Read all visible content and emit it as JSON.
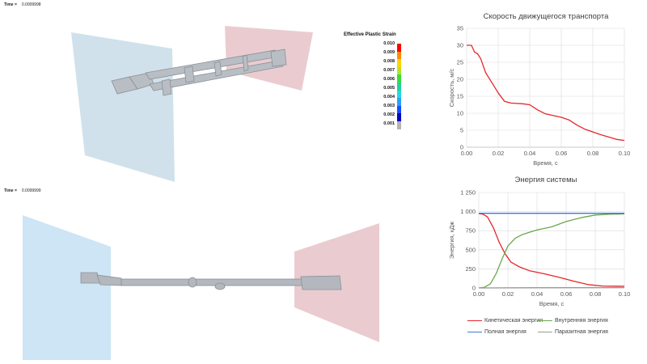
{
  "top_view": {
    "time_label": "Time =",
    "time_value": "0.0009998"
  },
  "bottom_view": {
    "time_label": "Time =",
    "time_value": "0.0099999"
  },
  "strain_legend": {
    "title": "Effective Plastic Strain",
    "levels": [
      "0.010",
      "0.009",
      "0.008",
      "0.007",
      "0.006",
      "0.005",
      "0.004",
      "0.003",
      "0.002",
      "0.001"
    ],
    "colors": [
      "#ff0000",
      "#ff8c00",
      "#ffd400",
      "#b4e61e",
      "#3cdc3c",
      "#1ed2a0",
      "#1edcdc",
      "#28a0ff",
      "#1450ff",
      "#0000c8",
      "#b4b4b4"
    ]
  },
  "chart_data": [
    {
      "type": "line",
      "title": "Скорость движущегося транспорта",
      "xlabel": "Время, с",
      "ylabel": "Скорость, м/с",
      "xlim": [
        0,
        0.1
      ],
      "ylim": [
        0,
        35
      ],
      "x_ticks": [
        "0.00",
        "0.02",
        "0.04",
        "0.06",
        "0.08",
        "0.10"
      ],
      "y_ticks": [
        "0",
        "5",
        "10",
        "15",
        "20",
        "25",
        "30",
        "35"
      ],
      "series": [
        {
          "name": "Скорость",
          "color": "#e8262b",
          "points": [
            [
              0,
              30
            ],
            [
              0.003,
              30
            ],
            [
              0.005,
              28
            ],
            [
              0.007,
              27.5
            ],
            [
              0.009,
              26
            ],
            [
              0.012,
              22
            ],
            [
              0.016,
              19
            ],
            [
              0.02,
              16
            ],
            [
              0.024,
              13.5
            ],
            [
              0.028,
              13
            ],
            [
              0.035,
              12.8
            ],
            [
              0.04,
              12.5
            ],
            [
              0.045,
              11
            ],
            [
              0.05,
              9.8
            ],
            [
              0.055,
              9.3
            ],
            [
              0.06,
              8.8
            ],
            [
              0.065,
              8
            ],
            [
              0.07,
              6.5
            ],
            [
              0.075,
              5.3
            ],
            [
              0.08,
              4.5
            ],
            [
              0.085,
              3.7
            ],
            [
              0.09,
              3
            ],
            [
              0.095,
              2.3
            ],
            [
              0.1,
              2
            ]
          ]
        }
      ]
    },
    {
      "type": "line",
      "title": "Энергия системы",
      "xlabel": "Время, с",
      "ylabel": "Энергия, кДж",
      "xlim": [
        0,
        0.1
      ],
      "ylim": [
        0,
        1250
      ],
      "x_ticks": [
        "0.00",
        "0.02",
        "0.04",
        "0.06",
        "0.08",
        "0.10"
      ],
      "y_ticks": [
        "0",
        "250",
        "500",
        "750",
        "1 000",
        "1 250"
      ],
      "series": [
        {
          "name": "Кинетическая энергия",
          "color": "#e8262b",
          "points": [
            [
              0,
              975
            ],
            [
              0.003,
              965
            ],
            [
              0.006,
              930
            ],
            [
              0.01,
              790
            ],
            [
              0.014,
              600
            ],
            [
              0.018,
              450
            ],
            [
              0.022,
              340
            ],
            [
              0.028,
              275
            ],
            [
              0.035,
              225
            ],
            [
              0.045,
              185
            ],
            [
              0.055,
              140
            ],
            [
              0.065,
              90
            ],
            [
              0.075,
              45
            ],
            [
              0.085,
              25
            ],
            [
              0.1,
              22
            ]
          ]
        },
        {
          "name": "Внутренняя энергия",
          "color": "#6aa84f",
          "points": [
            [
              0,
              0
            ],
            [
              0.004,
              10
            ],
            [
              0.008,
              55
            ],
            [
              0.012,
              190
            ],
            [
              0.016,
              380
            ],
            [
              0.02,
              550
            ],
            [
              0.025,
              650
            ],
            [
              0.03,
              700
            ],
            [
              0.04,
              760
            ],
            [
              0.05,
              800
            ],
            [
              0.06,
              870
            ],
            [
              0.07,
              920
            ],
            [
              0.08,
              955
            ],
            [
              0.09,
              965
            ],
            [
              0.1,
              970
            ]
          ]
        },
        {
          "name": "Полная энергия",
          "color": "#3c78d8",
          "points": [
            [
              0,
              978
            ],
            [
              0.1,
              978
            ]
          ]
        },
        {
          "name": "Паразитная энергия",
          "color": "#999999",
          "points": [
            [
              0,
              0
            ],
            [
              0.04,
              3
            ],
            [
              0.1,
              5
            ]
          ]
        }
      ]
    }
  ]
}
